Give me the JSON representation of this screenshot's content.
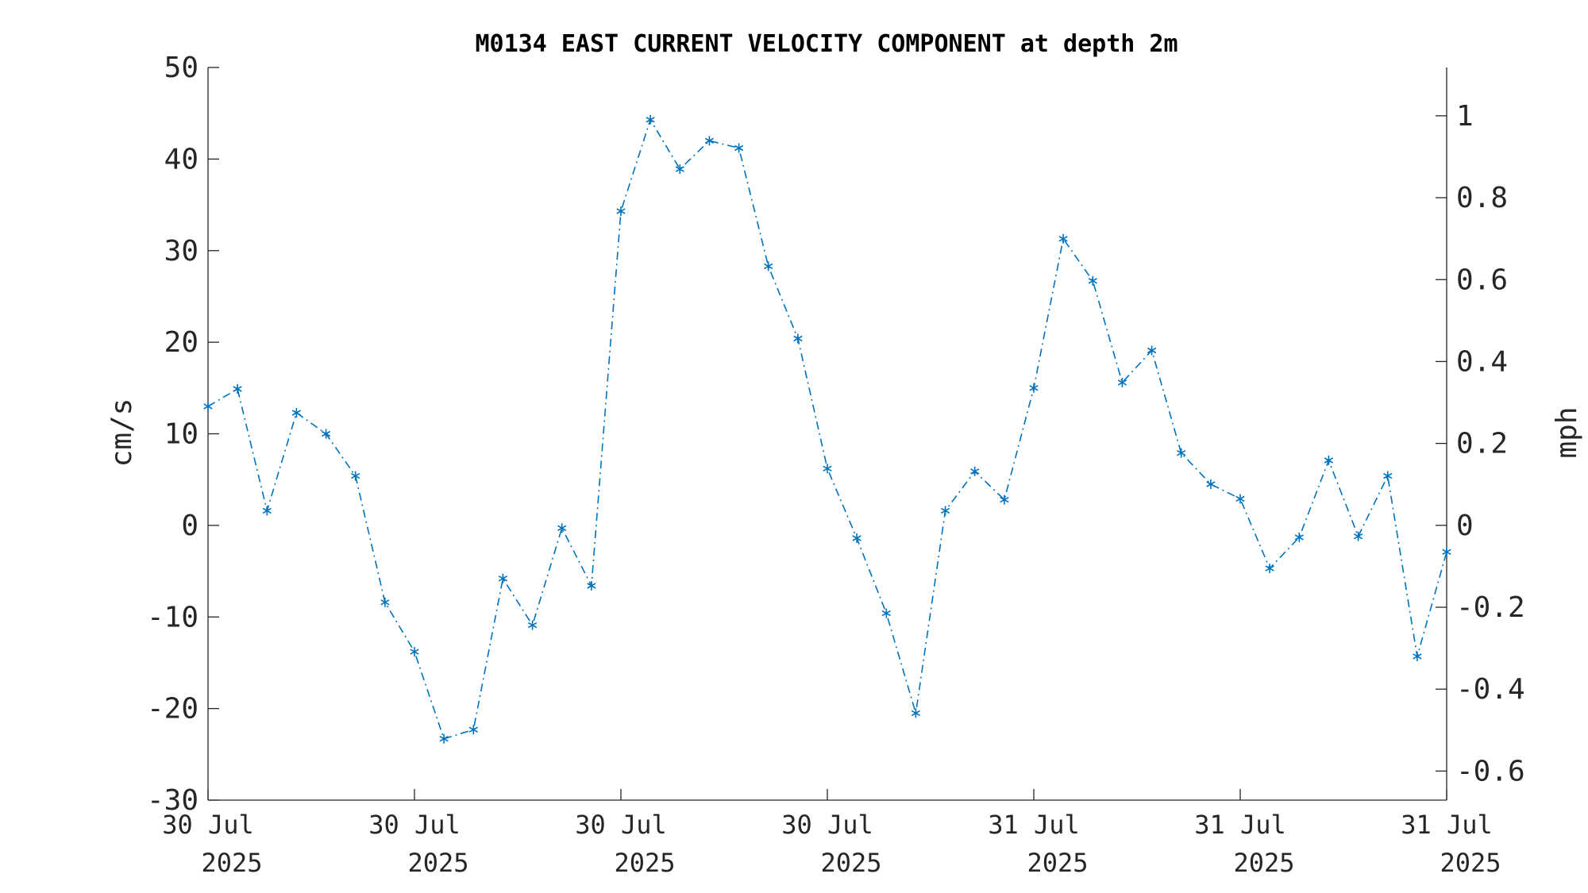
{
  "chart_data": {
    "type": "line",
    "title": "M0134 EAST CURRENT VELOCITY COMPONENT at depth 2m",
    "ylabel": "cm/s",
    "y2label": "mph",
    "ylim": [
      -30,
      50
    ],
    "yticks": [
      -30,
      -20,
      -10,
      0,
      10,
      20,
      30,
      40,
      50
    ],
    "y2lim": [
      -0.671,
      1.118
    ],
    "y2ticks": [
      -0.6,
      -0.4,
      -0.2,
      0,
      0.2,
      0.4,
      0.6,
      0.8,
      1
    ],
    "y2ticklabels": [
      "-0.6",
      "-0.4",
      "-0.2",
      "0",
      "0.2",
      "0.4",
      "0.6",
      "0.8",
      "1"
    ],
    "xticks": [
      {
        "line1": "30 Jul",
        "line2": "2025"
      },
      {
        "line1": "30 Jul",
        "line2": "2025"
      },
      {
        "line1": "30 Jul",
        "line2": "2025"
      },
      {
        "line1": "30 Jul",
        "line2": "2025"
      },
      {
        "line1": "31 Jul",
        "line2": "2025"
      },
      {
        "line1": "31 Jul",
        "line2": "2025"
      },
      {
        "line1": "31 Jul",
        "line2": "2025"
      }
    ],
    "series": [
      {
        "color": "#0072BD",
        "marker": "asterisk",
        "linestyle": "dash-dot",
        "values": [
          13.0,
          14.9,
          1.6,
          12.3,
          10.0,
          5.4,
          -8.4,
          -13.8,
          -23.3,
          -22.3,
          -5.8,
          -10.9,
          -0.3,
          -6.6,
          34.3,
          44.3,
          38.9,
          42.0,
          41.2,
          28.3,
          20.4,
          6.2,
          -1.4,
          -9.6,
          -20.5,
          1.6,
          5.9,
          2.8,
          15.0,
          31.3,
          26.7,
          15.6,
          19.1,
          7.9,
          4.5,
          2.9,
          -4.7,
          -1.3,
          7.1,
          -1.2,
          5.4,
          -14.3,
          -2.9
        ]
      }
    ]
  }
}
